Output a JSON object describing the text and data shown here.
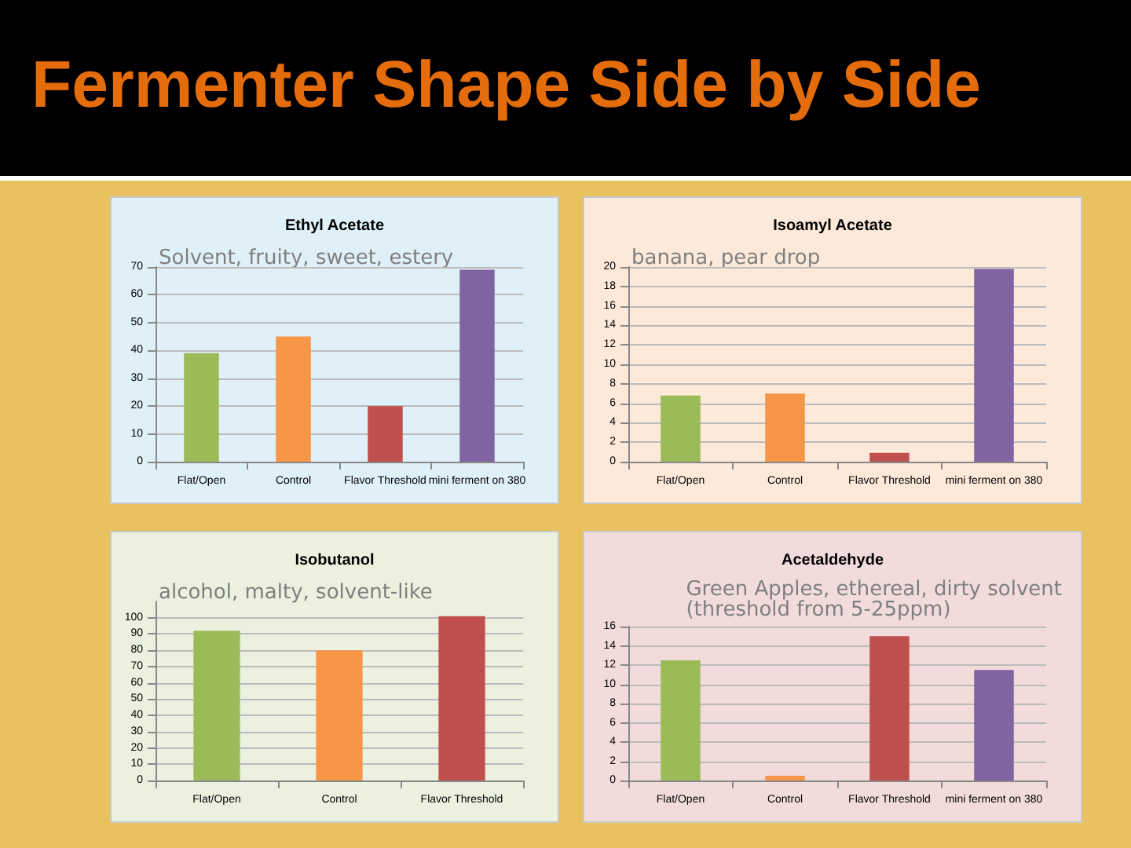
{
  "chart_data": [
    {
      "type": "bar",
      "title": "Ethyl Acetate",
      "annotations": [
        "Fermenter Shape Side by Side",
        "Solvent, fruity, sweet, estery"
      ],
      "categories": [
        "Flat/Open",
        "Control",
        "Flavor Threshold",
        "mini ferment on 380"
      ],
      "values": [
        39,
        45,
        20,
        69
      ],
      "colors": [
        "#9bbb59",
        "#f79646",
        "#c0504d",
        "#8064a2"
      ],
      "ylim": [
        0,
        70
      ],
      "yticks": [
        0,
        10,
        20,
        30,
        40,
        50,
        60,
        70
      ],
      "grid": "y"
    },
    {
      "type": "bar",
      "title": "Isoamyl Acetate",
      "annotations": [
        "banana, pear drop"
      ],
      "categories": [
        "Flat/Open",
        "Control",
        "Flavor Threshold",
        "mini ferment on 380"
      ],
      "values": [
        6.8,
        7,
        0.9,
        19.8
      ],
      "colors": [
        "#9bbb59",
        "#f79646",
        "#c0504d",
        "#8064a2"
      ],
      "ylim": [
        0,
        20
      ],
      "yticks": [
        0,
        2,
        4,
        6,
        8,
        10,
        12,
        14,
        16,
        18,
        20
      ],
      "grid": "y"
    },
    {
      "type": "bar",
      "title": "Isobutanol",
      "annotations": [
        "alcohol, malty, solvent-like"
      ],
      "categories": [
        "Flat/Open",
        "Control",
        "Flavor Threshold"
      ],
      "values": [
        92,
        80,
        101
      ],
      "colors": [
        "#9bbb59",
        "#f79646",
        "#c0504d"
      ],
      "ylim": [
        0,
        110
      ],
      "yticks": [
        0,
        10,
        20,
        30,
        40,
        50,
        60,
        70,
        80,
        90,
        100
      ],
      "grid": "y"
    },
    {
      "type": "bar",
      "title": "Acetaldehyde",
      "annotations": [
        "Green Apples, ethereal, dirty solvent\n(threshold from 5-25ppm)"
      ],
      "categories": [
        "Flat/Open",
        "Control",
        "Flavor Threshold",
        "mini ferment on 380"
      ],
      "values": [
        12.5,
        0.5,
        15,
        11.5
      ],
      "colors": [
        "#9bbb59",
        "#f79646",
        "#c0504d",
        "#8064a2"
      ],
      "ylim": [
        0,
        16
      ],
      "yticks": [
        0,
        2,
        4,
        6,
        8,
        10,
        12,
        14,
        16
      ],
      "grid": "y"
    }
  ]
}
